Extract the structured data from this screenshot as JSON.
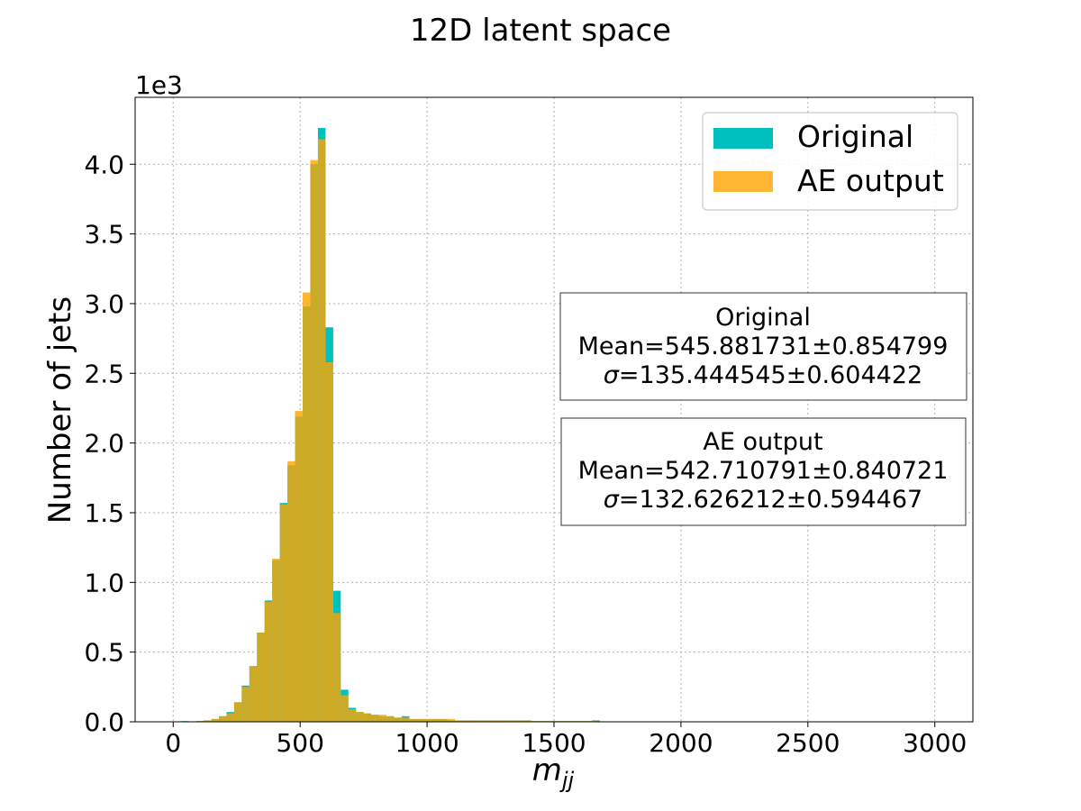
{
  "chart_data": {
    "type": "bar",
    "title": "12D latent space",
    "xlabel": "m",
    "xlabel_sub": "jj",
    "ylabel": "Number of jets",
    "y_multiplier_label": "1e3",
    "xlim": [
      -150,
      3150
    ],
    "ylim": [
      0,
      4.48
    ],
    "xticks": [
      0,
      500,
      1000,
      1500,
      2000,
      2500,
      3000
    ],
    "yticks": [
      0.0,
      0.5,
      1.0,
      1.5,
      2.0,
      2.5,
      3.0,
      3.5,
      4.0
    ],
    "ytick_labels": [
      "0.0",
      "0.5",
      "1.0",
      "1.5",
      "2.0",
      "2.5",
      "3.0",
      "3.5",
      "4.0"
    ],
    "grid": true,
    "legend_position": "top-right",
    "bin_width": 30,
    "x": [
      45,
      75,
      105,
      135,
      165,
      195,
      225,
      255,
      285,
      315,
      345,
      375,
      405,
      435,
      465,
      495,
      525,
      555,
      585,
      615,
      645,
      675,
      705,
      735,
      765,
      795,
      825,
      855,
      885,
      915,
      945,
      975,
      1005,
      1035,
      1065,
      1095,
      1125,
      1155,
      1185,
      1215,
      1245,
      1275,
      1305,
      1335,
      1365,
      1395,
      1425,
      1455,
      1485,
      1515,
      1545,
      1575,
      1605,
      1635,
      1665,
      1695
    ],
    "series": [
      {
        "name": "Original",
        "color": "#00bfbf",
        "values": [
          0.005,
          0.0,
          0.005,
          0.01,
          0.02,
          0.04,
          0.07,
          0.14,
          0.26,
          0.4,
          0.64,
          0.87,
          1.16,
          1.57,
          1.84,
          2.19,
          2.98,
          4.0,
          4.26,
          2.83,
          0.94,
          0.23,
          0.1,
          0.07,
          0.06,
          0.05,
          0.04,
          0.04,
          0.03,
          0.04,
          0.02,
          0.02,
          0.02,
          0.02,
          0.02,
          0.01,
          0.01,
          0.01,
          0.01,
          0.01,
          0.01,
          0.01,
          0.01,
          0.01,
          0.01,
          0.01,
          0.005,
          0.005,
          0.005,
          0.005,
          0.005,
          0.005,
          0.005,
          0.005,
          0.01,
          0.0
        ]
      },
      {
        "name": "AE output",
        "color": "#ffa500",
        "values": [
          0.0,
          0.0,
          0.005,
          0.01,
          0.02,
          0.04,
          0.06,
          0.14,
          0.25,
          0.4,
          0.64,
          0.86,
          1.17,
          1.56,
          1.87,
          2.23,
          3.08,
          4.03,
          4.18,
          2.58,
          0.78,
          0.19,
          0.09,
          0.07,
          0.06,
          0.05,
          0.05,
          0.04,
          0.03,
          0.03,
          0.02,
          0.02,
          0.02,
          0.02,
          0.02,
          0.02,
          0.01,
          0.01,
          0.01,
          0.01,
          0.01,
          0.01,
          0.01,
          0.01,
          0.01,
          0.01,
          0.005,
          0.005,
          0.005,
          0.005,
          0.005,
          0.005,
          0.005,
          0.005,
          0.005,
          0.0
        ]
      }
    ],
    "stat_boxes": [
      {
        "title": "Original",
        "mean_line": "Mean=545.881731±0.854799",
        "sigma_symbol": "σ",
        "sigma_text": "=135.444545±0.604422"
      },
      {
        "title": "AE output",
        "mean_line": "Mean=542.710791±0.840721",
        "sigma_symbol": "σ",
        "sigma_text": "=132.626212±0.594467"
      }
    ]
  }
}
